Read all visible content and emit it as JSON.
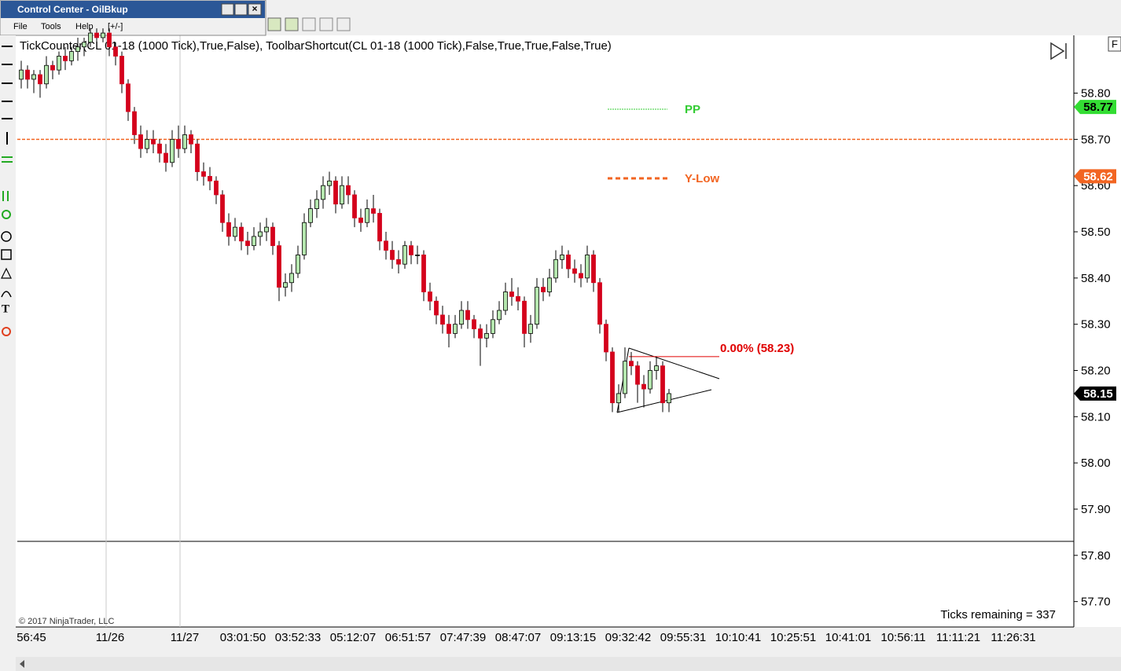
{
  "window": {
    "title": "Control Center - OilBkup",
    "menu": [
      "File",
      "Tools",
      "Help",
      "[+/-]"
    ]
  },
  "chart_data": {
    "type": "candlestick",
    "title": "TickCounter(CL 01-18 (1000 Tick),True,False), ToolbarShortcut(CL 01-18 (1000 Tick),False,True,True,False,True)",
    "up_color": "#b4e6ae",
    "down_color": "#d4001c",
    "ohlc": [
      [
        58.83,
        58.87,
        58.81,
        58.85
      ],
      [
        58.85,
        58.86,
        58.81,
        58.83
      ],
      [
        58.83,
        58.85,
        58.8,
        58.84
      ],
      [
        58.84,
        58.85,
        58.79,
        58.82
      ],
      [
        58.82,
        58.88,
        58.81,
        58.86
      ],
      [
        58.86,
        58.87,
        58.83,
        58.85
      ],
      [
        58.85,
        58.89,
        58.84,
        58.88
      ],
      [
        58.88,
        58.9,
        58.85,
        58.87
      ],
      [
        58.87,
        58.9,
        58.86,
        58.89
      ],
      [
        58.89,
        58.92,
        58.87,
        58.9
      ],
      [
        58.9,
        58.92,
        58.88,
        58.91
      ],
      [
        58.91,
        58.94,
        58.9,
        58.93
      ],
      [
        58.93,
        58.94,
        58.9,
        58.92
      ],
      [
        58.92,
        58.94,
        58.91,
        58.93
      ],
      [
        58.93,
        58.94,
        58.88,
        58.9
      ],
      [
        58.9,
        58.91,
        58.86,
        58.88
      ],
      [
        58.88,
        58.89,
        58.8,
        58.82
      ],
      [
        58.82,
        58.83,
        58.74,
        58.76
      ],
      [
        58.76,
        58.77,
        58.69,
        58.71
      ],
      [
        58.71,
        58.73,
        58.66,
        58.68
      ],
      [
        58.68,
        58.72,
        58.67,
        58.7
      ],
      [
        58.7,
        58.72,
        58.67,
        58.69
      ],
      [
        58.69,
        58.7,
        58.65,
        58.67
      ],
      [
        58.67,
        58.69,
        58.63,
        58.65
      ],
      [
        58.65,
        58.72,
        58.64,
        58.7
      ],
      [
        58.7,
        58.73,
        58.66,
        58.68
      ],
      [
        58.68,
        58.73,
        58.67,
        58.71
      ],
      [
        58.71,
        58.72,
        58.67,
        58.69
      ],
      [
        58.69,
        58.7,
        58.61,
        58.63
      ],
      [
        58.63,
        58.65,
        58.6,
        58.62
      ],
      [
        58.62,
        58.64,
        58.59,
        58.61
      ],
      [
        58.61,
        58.62,
        58.56,
        58.58
      ],
      [
        58.58,
        58.59,
        58.5,
        58.52
      ],
      [
        58.52,
        58.54,
        58.47,
        58.49
      ],
      [
        58.49,
        58.53,
        58.48,
        58.51
      ],
      [
        58.51,
        58.52,
        58.46,
        58.48
      ],
      [
        58.48,
        58.5,
        58.45,
        58.47
      ],
      [
        58.47,
        58.51,
        58.46,
        58.49
      ],
      [
        58.49,
        58.52,
        58.47,
        58.5
      ],
      [
        58.5,
        58.53,
        58.48,
        58.51
      ],
      [
        58.51,
        58.52,
        58.45,
        58.47
      ],
      [
        58.47,
        58.48,
        58.35,
        58.38
      ],
      [
        58.38,
        58.41,
        58.36,
        58.39
      ],
      [
        58.39,
        58.43,
        58.37,
        58.41
      ],
      [
        58.41,
        58.47,
        58.4,
        58.45
      ],
      [
        58.45,
        58.54,
        58.44,
        58.52
      ],
      [
        58.52,
        58.57,
        58.51,
        58.55
      ],
      [
        58.55,
        58.59,
        58.53,
        58.57
      ],
      [
        58.57,
        58.62,
        58.55,
        58.6
      ],
      [
        58.6,
        58.63,
        58.58,
        58.61
      ],
      [
        58.61,
        58.62,
        58.54,
        58.56
      ],
      [
        58.56,
        58.62,
        58.55,
        58.6
      ],
      [
        58.6,
        58.62,
        58.56,
        58.58
      ],
      [
        58.58,
        58.59,
        58.51,
        58.53
      ],
      [
        58.53,
        58.55,
        58.5,
        58.52
      ],
      [
        58.52,
        58.57,
        58.51,
        58.55
      ],
      [
        58.55,
        58.58,
        58.52,
        58.54
      ],
      [
        58.54,
        58.55,
        58.46,
        58.48
      ],
      [
        58.48,
        58.5,
        58.44,
        58.46
      ],
      [
        58.46,
        58.48,
        58.42,
        58.44
      ],
      [
        58.44,
        58.46,
        58.41,
        58.43
      ],
      [
        58.43,
        58.48,
        58.42,
        58.47
      ],
      [
        58.47,
        58.48,
        58.43,
        58.45
      ],
      [
        58.45,
        58.47,
        58.43,
        58.45
      ],
      [
        58.45,
        58.46,
        58.35,
        58.37
      ],
      [
        58.37,
        58.39,
        58.33,
        58.35
      ],
      [
        58.35,
        58.36,
        58.3,
        58.32
      ],
      [
        58.32,
        58.34,
        58.28,
        58.3
      ],
      [
        58.3,
        58.32,
        58.25,
        58.28
      ],
      [
        58.28,
        58.32,
        58.27,
        58.3
      ],
      [
        58.3,
        58.35,
        58.29,
        58.33
      ],
      [
        58.33,
        58.35,
        58.29,
        58.31
      ],
      [
        58.31,
        58.32,
        58.27,
        58.29
      ],
      [
        58.29,
        58.3,
        58.21,
        58.27
      ],
      [
        58.27,
        58.3,
        58.25,
        58.28
      ],
      [
        58.28,
        58.33,
        58.27,
        58.31
      ],
      [
        58.31,
        58.35,
        58.3,
        58.33
      ],
      [
        58.33,
        58.39,
        58.32,
        58.37
      ],
      [
        58.37,
        58.4,
        58.34,
        58.36
      ],
      [
        58.36,
        58.38,
        58.33,
        58.35
      ],
      [
        58.35,
        58.36,
        58.25,
        58.28
      ],
      [
        58.28,
        58.32,
        58.26,
        58.3
      ],
      [
        58.3,
        58.4,
        58.29,
        58.38
      ],
      [
        58.38,
        58.4,
        58.35,
        58.37
      ],
      [
        58.37,
        58.42,
        58.36,
        58.4
      ],
      [
        58.4,
        58.46,
        58.39,
        58.44
      ],
      [
        58.44,
        58.47,
        58.42,
        58.45
      ],
      [
        58.45,
        58.46,
        58.4,
        58.42
      ],
      [
        58.42,
        58.44,
        58.39,
        58.41
      ],
      [
        58.41,
        58.43,
        58.38,
        58.4
      ],
      [
        58.4,
        58.47,
        58.39,
        58.45
      ],
      [
        58.45,
        58.46,
        58.37,
        58.39
      ],
      [
        58.39,
        58.4,
        58.28,
        58.3
      ],
      [
        58.3,
        58.31,
        58.22,
        58.24
      ],
      [
        58.24,
        58.25,
        58.11,
        58.13
      ],
      [
        58.13,
        58.17,
        58.11,
        58.15
      ],
      [
        58.15,
        58.25,
        58.14,
        58.22
      ],
      [
        58.22,
        58.24,
        58.19,
        58.21
      ],
      [
        58.21,
        58.22,
        58.13,
        58.17
      ],
      [
        58.17,
        58.19,
        58.12,
        58.16
      ],
      [
        58.16,
        58.22,
        58.15,
        58.2
      ],
      [
        58.2,
        58.23,
        58.18,
        58.21
      ],
      [
        58.21,
        58.22,
        58.11,
        58.13
      ],
      [
        58.13,
        58.16,
        58.11,
        58.15
      ]
    ],
    "x_labels": [
      "56:45",
      "11/26",
      "11/27",
      "03:01:50",
      "03:52:33",
      "05:12:07",
      "06:51:57",
      "07:47:39",
      "08:47:07",
      "09:13:15",
      "09:32:42",
      "09:55:31",
      "10:10:41",
      "10:25:51",
      "10:41:01",
      "10:56:11",
      "11:11:21",
      "11:26:31"
    ],
    "ylim": [
      57.645,
      58.925
    ],
    "yticks": [
      {
        "value": 57.7,
        "label": "57.70"
      },
      {
        "value": 57.8,
        "label": "57.80"
      },
      {
        "value": 57.9,
        "label": "57.90"
      },
      {
        "value": 58,
        "label": "58.00"
      },
      {
        "value": 58.1,
        "label": "58.10"
      },
      {
        "value": 58.2,
        "label": "58.20"
      },
      {
        "value": 58.3,
        "label": "58.30"
      },
      {
        "value": 58.4,
        "label": "58.40"
      },
      {
        "value": 58.5,
        "label": "58.50"
      },
      {
        "value": 58.6,
        "label": "58.60"
      },
      {
        "value": 58.7,
        "label": "58.70"
      },
      {
        "value": 58.8,
        "label": "58.80"
      }
    ],
    "legend": [
      {
        "name": "PP",
        "color": "#33cc33",
        "dash": "2 1"
      },
      {
        "name": "Y-Low",
        "color": "#f26522",
        "dash": "6 4"
      }
    ],
    "levels": [
      {
        "value": 58.7,
        "color": "#f26522"
      }
    ],
    "price_markers": [
      {
        "value": 58.77,
        "color": "#33dd33",
        "text_color": "#000000"
      },
      {
        "value": 58.62,
        "color": "#f26522",
        "text_color": "#ffffff"
      },
      {
        "value": 58.15,
        "color": "#000000",
        "text_color": "#ffffff"
      }
    ],
    "fib": {
      "label": "0.00% (58.23)",
      "value": 58.23,
      "color": "#e00000"
    },
    "ticks_remaining": "Ticks remaining = 337",
    "copyright": "© 2017 NinjaTrader, LLC"
  }
}
